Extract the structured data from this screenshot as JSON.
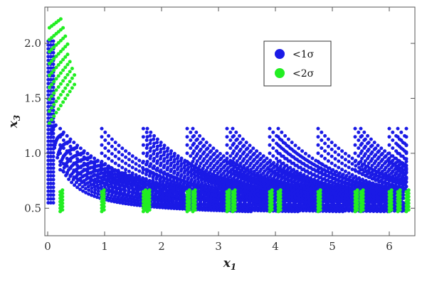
{
  "chart_data": {
    "type": "scatter",
    "title": "",
    "xlabel": {
      "main": "x",
      "sub": "1"
    },
    "ylabel": {
      "main": "x",
      "sub": "3"
    },
    "xlim": [
      -0.05,
      6.45
    ],
    "ylim": [
      0.25,
      2.33
    ],
    "x_ticks": [
      0,
      1,
      2,
      3,
      4,
      5,
      6
    ],
    "x_tick_labels": [
      "0",
      "1",
      "2",
      "3",
      "4",
      "5",
      "6"
    ],
    "y_ticks": [
      0.5,
      1.0,
      1.5,
      2.0
    ],
    "y_tick_labels": [
      "0.5",
      "1.0",
      "1.5",
      "2.0"
    ],
    "grid": false,
    "legend_position": "top-right",
    "series": [
      {
        "name": "<1σ",
        "color": "#1a1ae6",
        "description": "dense band of points following x3 ~ c/(x1+a)",
        "curve_constants": [
          0.45,
          0.55,
          0.65,
          0.75,
          0.85,
          0.95,
          1.05,
          1.15,
          1.25,
          1.35,
          1.45,
          1.55,
          1.65,
          1.75,
          1.85,
          1.95,
          2.05,
          2.15,
          2.25
        ],
        "x_range": [
          0.0,
          6.3
        ]
      },
      {
        "name": "<2σ",
        "color": "#22ee22",
        "description": "points at the band edges: upper-left arc and vertical strips near x3 ~ 0.5",
        "strip_x": [
          0.22,
          0.95,
          1.68,
          1.75,
          2.45,
          2.55,
          3.15,
          3.25,
          3.9,
          4.05,
          4.75,
          5.4,
          5.5,
          6.0,
          6.15,
          6.3
        ],
        "strip_y_range": [
          0.47,
          0.66
        ],
        "upper_arc_y_range": [
          1.2,
          2.25
        ]
      }
    ],
    "legend": [
      {
        "label": "<1σ",
        "color": "#1a1ae6"
      },
      {
        "label": "<2σ",
        "color": "#22ee22"
      }
    ]
  }
}
